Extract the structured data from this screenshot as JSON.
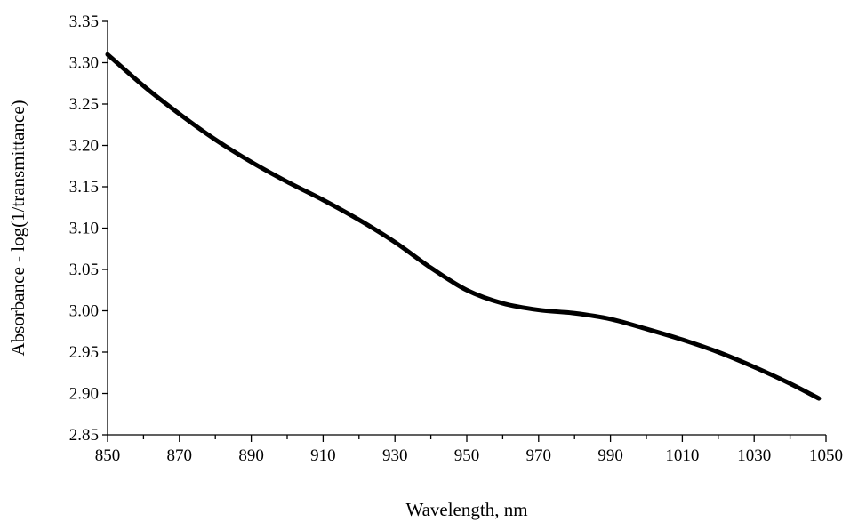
{
  "chart_data": {
    "type": "line",
    "title": "",
    "xlabel": "Wavelength, nm",
    "ylabel": "Absorbance - log(1/transmittance)",
    "xlim": [
      850,
      1050
    ],
    "ylim": [
      2.85,
      3.35
    ],
    "x_ticks": [
      850,
      870,
      890,
      910,
      930,
      950,
      970,
      990,
      1010,
      1030,
      1050
    ],
    "x_tick_labels": [
      "850",
      "870",
      "890",
      "910",
      "930",
      "950",
      "970",
      "990",
      "1010",
      "1030",
      "1050"
    ],
    "y_ticks": [
      2.85,
      2.9,
      2.95,
      3.0,
      3.05,
      3.1,
      3.15,
      3.2,
      3.25,
      3.3,
      3.35
    ],
    "y_tick_labels": [
      "2.85",
      "2.90",
      "2.95",
      "3.00",
      "3.05",
      "3.10",
      "3.15",
      "3.20",
      "3.25",
      "3.30",
      "3.35"
    ],
    "grid": false,
    "legend": "none",
    "series": [
      {
        "color": "#000000",
        "x": [
          850,
          860,
          870,
          880,
          890,
          900,
          910,
          920,
          930,
          940,
          950,
          960,
          970,
          980,
          990,
          1000,
          1010,
          1020,
          1030,
          1040,
          1048
        ],
        "y": [
          3.31,
          3.272,
          3.238,
          3.207,
          3.18,
          3.156,
          3.134,
          3.11,
          3.083,
          3.052,
          3.025,
          3.009,
          3.001,
          2.997,
          2.99,
          2.978,
          2.965,
          2.95,
          2.932,
          2.912,
          2.894
        ]
      }
    ]
  }
}
